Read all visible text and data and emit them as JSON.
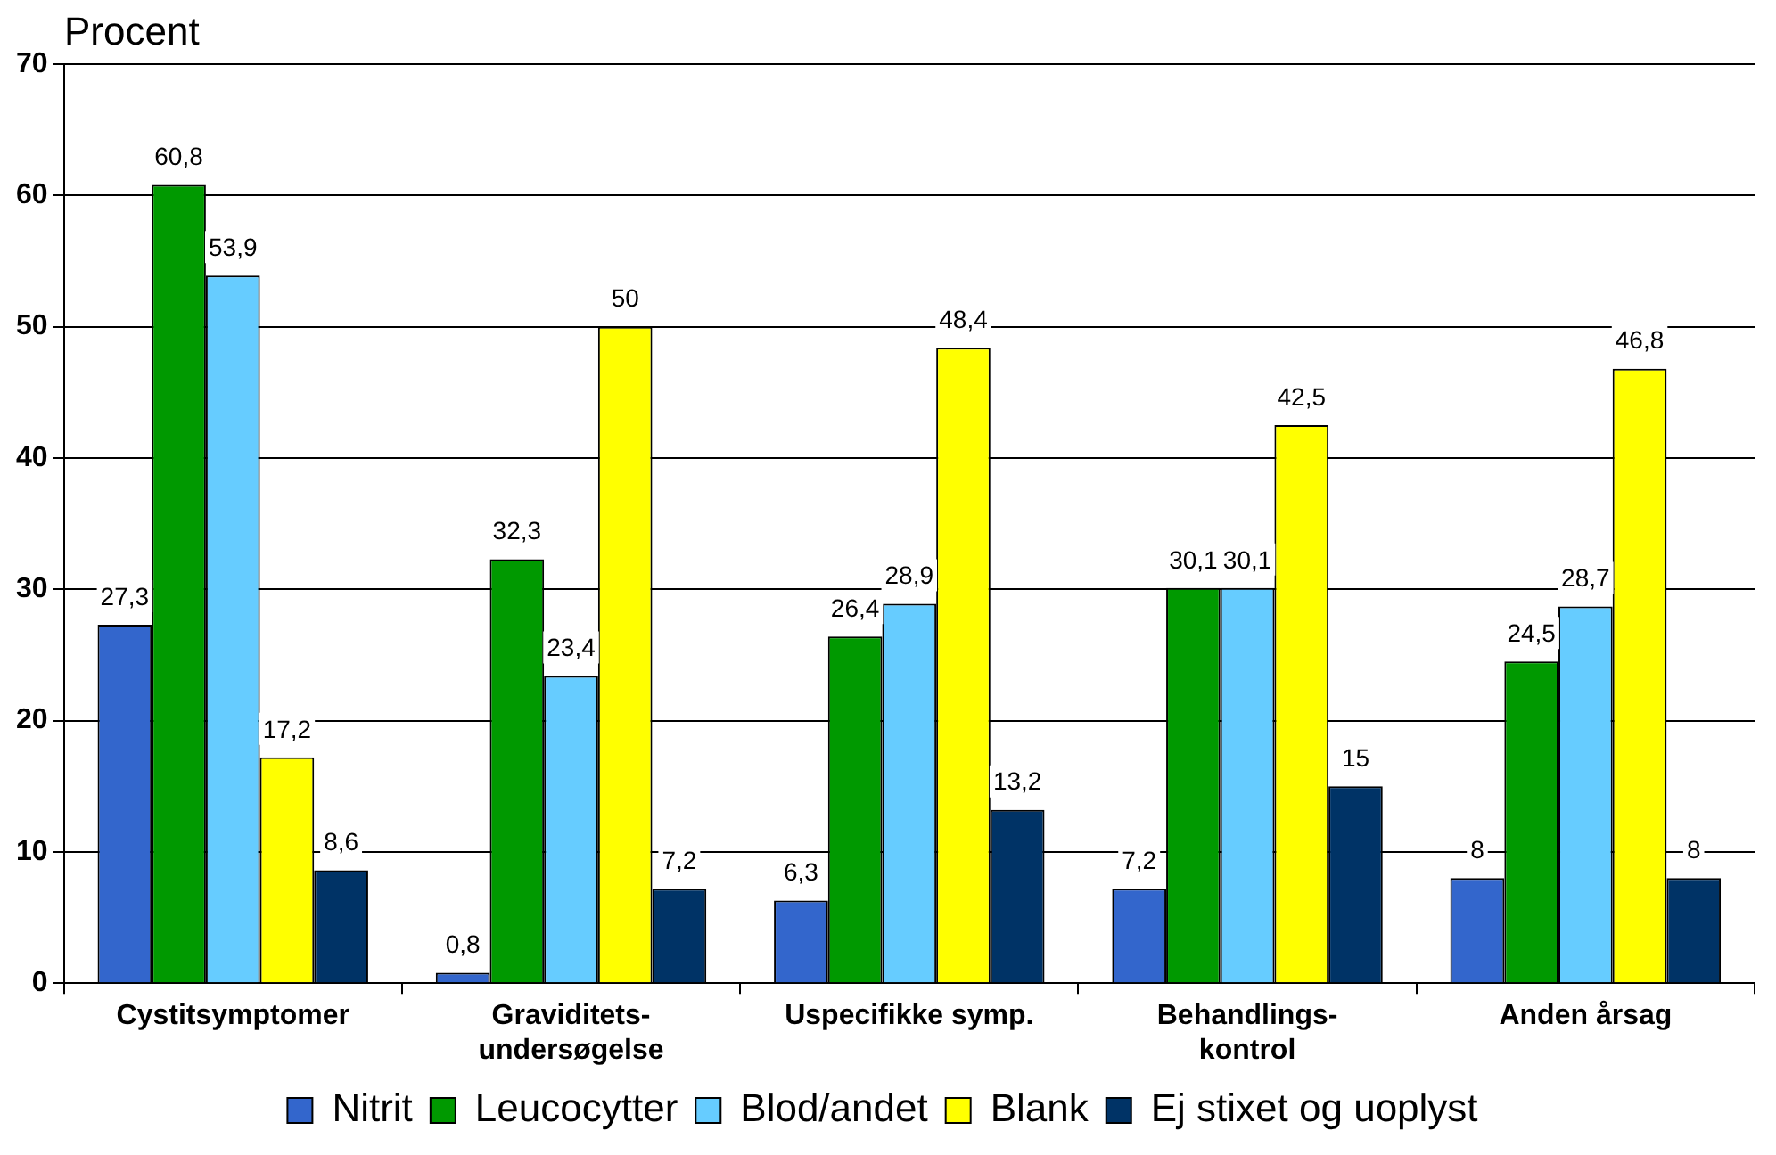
{
  "chart_data": {
    "type": "bar",
    "ylabel": "Procent",
    "categories": [
      "Cystitsymptomer",
      "Graviditets-\nundersøgelse",
      "Uspecifikke symp.",
      "Behandlings-\nkontrol",
      "Anden årsag"
    ],
    "series": [
      {
        "name": "Nitrit",
        "color": "#3366cc",
        "values": [
          27.3,
          0.8,
          6.3,
          7.2,
          8
        ],
        "value_labels": [
          "27,3",
          "0,8",
          "6,3",
          "7,2",
          "8"
        ]
      },
      {
        "name": "Leucocytter",
        "color": "#009900",
        "values": [
          60.8,
          32.3,
          26.4,
          30.1,
          24.5
        ],
        "value_labels": [
          "60,8",
          "32,3",
          "26,4",
          "30,1",
          "24,5"
        ]
      },
      {
        "name": "Blod/andet",
        "color": "#66ccff",
        "values": [
          53.9,
          23.4,
          28.9,
          30.1,
          28.7
        ],
        "value_labels": [
          "53,9",
          "23,4",
          "28,9",
          "30,1",
          "28,7"
        ]
      },
      {
        "name": "Blank",
        "color": "#ffff00",
        "values": [
          17.2,
          50,
          48.4,
          42.5,
          46.8
        ],
        "value_labels": [
          "17,2",
          "50",
          "48,4",
          "42,5",
          "46,8"
        ]
      },
      {
        "name": "Ej stixet og uoplyst",
        "color": "#003366",
        "values": [
          8.6,
          7.2,
          13.2,
          15,
          8
        ],
        "value_labels": [
          "8,6",
          "7,2",
          "13,2",
          "15",
          "8"
        ]
      }
    ],
    "ylim": [
      0,
      70
    ],
    "yticks": [
      0,
      10,
      20,
      30,
      40,
      50,
      60,
      70
    ],
    "grid": "y",
    "legend": "bottom"
  }
}
